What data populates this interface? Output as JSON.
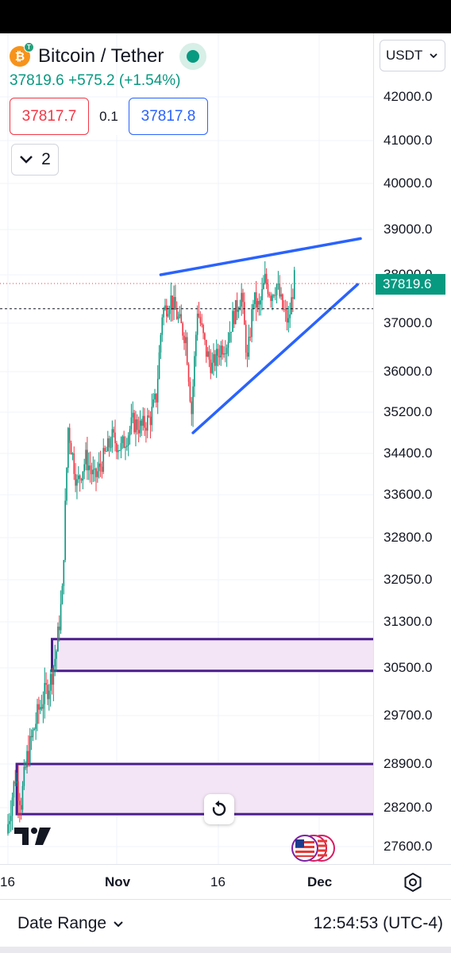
{
  "header": {
    "symbol": "Bitcoin / Tether",
    "last_price": "37819.6",
    "change": "+575.2 (+1.54%)",
    "bid": "37817.7",
    "spread": "0.1",
    "ask": "37817.8",
    "indicators_count": "2",
    "coin_glyph": "₿",
    "tether_glyph": "T"
  },
  "price_axis": {
    "currency": "USDT",
    "last_price_label": "37819.6"
  },
  "time_axis": {
    "labels": [
      "16",
      "Nov",
      "16",
      "Dec"
    ]
  },
  "footer": {
    "date_range_label": "Date Range",
    "clock": "12:54:53 (UTC-4)"
  },
  "colors": {
    "up": "#089981",
    "down": "#f23645",
    "trendline": "#2962ff",
    "zone_border": "#4a1d8c",
    "zone_fill": "#f3e5f5"
  },
  "chart_data": {
    "type": "candlestick",
    "symbol": "Bitcoin / Tether",
    "y_ticks": [
      42000,
      41000,
      40000,
      39000,
      38000,
      37000,
      36000,
      35200,
      34400,
      33600,
      32800,
      32050,
      31300,
      30500,
      29700,
      28900,
      28200,
      27600
    ],
    "x_ticks": [
      "16",
      "Nov",
      "16",
      "Dec"
    ],
    "ylim": [
      27300,
      42700
    ],
    "last_price": 37819.6,
    "crosshair_price": 37300,
    "waypoints": [
      [
        0,
        27800
      ],
      [
        6,
        28700
      ],
      [
        10,
        28300
      ],
      [
        14,
        29000
      ],
      [
        22,
        29800
      ],
      [
        30,
        30300
      ],
      [
        34,
        30800
      ],
      [
        38,
        31800
      ],
      [
        42,
        34900
      ],
      [
        48,
        33800
      ],
      [
        54,
        34300
      ],
      [
        60,
        33900
      ],
      [
        66,
        34300
      ],
      [
        72,
        34700
      ],
      [
        78,
        34500
      ],
      [
        86,
        35000
      ],
      [
        92,
        34900
      ],
      [
        98,
        35100
      ],
      [
        102,
        35500
      ],
      [
        106,
        37200
      ],
      [
        112,
        37500
      ],
      [
        118,
        37000
      ],
      [
        122,
        36700
      ],
      [
        126,
        35200
      ],
      [
        130,
        37300
      ],
      [
        136,
        36400
      ],
      [
        140,
        36100
      ],
      [
        146,
        36500
      ],
      [
        150,
        36600
      ],
      [
        154,
        37100
      ],
      [
        160,
        37600
      ],
      [
        164,
        36200
      ],
      [
        168,
        37500
      ],
      [
        172,
        37300
      ],
      [
        176,
        37900
      ],
      [
        180,
        37600
      ],
      [
        184,
        37800
      ],
      [
        188,
        37300
      ],
      [
        192,
        37000
      ],
      [
        196,
        37900
      ]
    ],
    "trendlines": [
      {
        "from": [
          104,
          38000
        ],
        "to": [
          240,
          38800
        ]
      },
      {
        "from": [
          126,
          34800
        ],
        "to": [
          238,
          37800
        ]
      }
    ],
    "zones": [
      {
        "x_start": 30,
        "top": 31000,
        "bottom": 30450
      },
      {
        "x_start": 6,
        "top": 28900,
        "bottom": 28100
      }
    ]
  }
}
